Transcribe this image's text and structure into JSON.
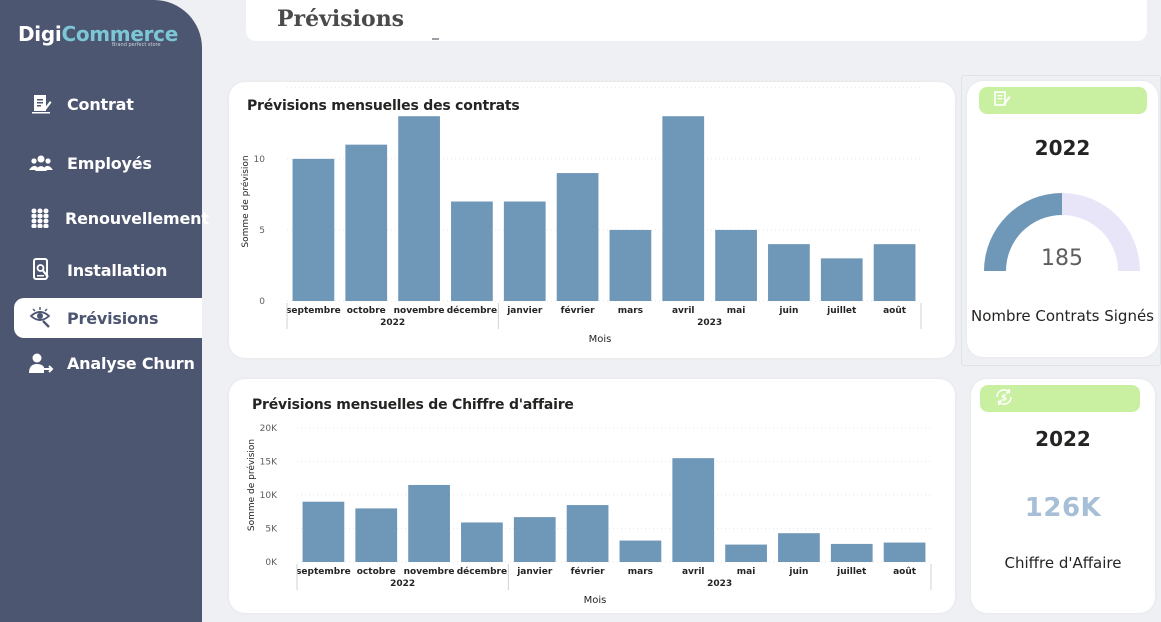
{
  "logo": {
    "brand_a": "Digi",
    "brand_b": "Commerce",
    "tagline": "Brand perfect store"
  },
  "sidebar": {
    "items": [
      {
        "label": "Contrat",
        "icon": "contract-icon",
        "active": false
      },
      {
        "label": "Employés",
        "icon": "employees-icon",
        "active": false
      },
      {
        "label": "Renouvellement",
        "icon": "group-icon",
        "active": false
      },
      {
        "label": "Installation",
        "icon": "installation-icon",
        "active": false
      },
      {
        "label": "Prévisions",
        "icon": "forecast-eye-icon",
        "active": true
      },
      {
        "label": "Analyse Churn",
        "icon": "user-churn-icon",
        "active": false
      }
    ]
  },
  "header": {
    "title": "Prévisions"
  },
  "colors": {
    "sidebar": "#4d5671",
    "bar": "#6f97b8",
    "accent_green": "#c9f0a1",
    "gauge_rest": "#e8e5f8"
  },
  "charts": {
    "contracts": {
      "title": "Prévisions mensuelles des contrats",
      "ylabel": "Somme de prévision",
      "xlabel": "Mois",
      "yticks": [
        "0",
        "5",
        "10"
      ],
      "years": [
        "2022",
        "2023"
      ]
    },
    "revenue": {
      "title": "Prévisions mensuelles de Chiffre d'affaire",
      "ylabel": "Somme de prévision",
      "xlabel": "Mois",
      "yticks": [
        "0K",
        "5K",
        "10K",
        "15K",
        "20K"
      ],
      "years": [
        "2022",
        "2023"
      ]
    }
  },
  "chart_data": [
    {
      "type": "bar",
      "title": "Prévisions mensuelles des contrats",
      "xlabel": "Mois",
      "ylabel": "Somme de prévision",
      "categories": [
        "septembre",
        "octobre",
        "novembre",
        "décembre",
        "janvier",
        "février",
        "mars",
        "avril",
        "mai",
        "juin",
        "juillet",
        "août"
      ],
      "years": [
        {
          "label": "2022",
          "from": 0,
          "to": 3
        },
        {
          "label": "2023",
          "from": 4,
          "to": 11
        }
      ],
      "values": [
        10,
        11,
        13,
        7,
        7,
        9,
        5,
        13,
        5,
        4,
        3,
        4
      ],
      "ylim": [
        0,
        14
      ],
      "grid": true,
      "legend": "none"
    },
    {
      "type": "bar",
      "title": "Prévisions mensuelles de Chiffre d'affaire",
      "xlabel": "Mois",
      "ylabel": "Somme de prévision",
      "categories": [
        "septembre",
        "octobre",
        "novembre",
        "décembre",
        "janvier",
        "février",
        "mars",
        "avril",
        "mai",
        "juin",
        "juillet",
        "août"
      ],
      "years": [
        {
          "label": "2022",
          "from": 0,
          "to": 3
        },
        {
          "label": "2023",
          "from": 4,
          "to": 11
        }
      ],
      "values": [
        9000,
        8000,
        11500,
        5900,
        6700,
        8500,
        3200,
        15500,
        2600,
        4300,
        2700,
        2900
      ],
      "ylim": [
        0,
        20000
      ],
      "grid": true,
      "legend": "none"
    }
  ],
  "kpi": {
    "contracts": {
      "year": "2022",
      "value": "185",
      "gauge_fraction": 0.5,
      "label": "Nombre Contrats Signés",
      "icon": "document-edit-icon"
    },
    "revenue": {
      "year": "2022",
      "value": "126K",
      "label": "Chiffre d'Affaire",
      "icon": "money-cycle-icon"
    }
  }
}
